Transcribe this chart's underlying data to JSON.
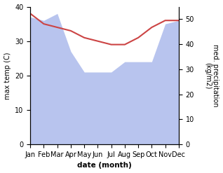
{
  "months": [
    "Jan",
    "Feb",
    "Mar",
    "Apr",
    "May",
    "Jun",
    "Jul",
    "Aug",
    "Sep",
    "Oct",
    "Nov",
    "Dec"
  ],
  "temperature": [
    38,
    35,
    34,
    33,
    31,
    30,
    29,
    29,
    31,
    34,
    36,
    36
  ],
  "precipitation": [
    37,
    36,
    38,
    27,
    21,
    21,
    21,
    24,
    24,
    24,
    35,
    36
  ],
  "temp_color": "#cc4444",
  "precip_color": "#b8c4ee",
  "ylabel_left": "max temp (C)",
  "ylabel_right": "med. precipitation\n(kg/m2)",
  "xlabel": "date (month)",
  "ylim_left": [
    0,
    40
  ],
  "ylim_right": [
    0,
    55
  ],
  "yticks_left": [
    0,
    10,
    20,
    30,
    40
  ],
  "yticks_right": [
    0,
    10,
    20,
    30,
    40,
    50
  ],
  "right_tick_labels": [
    "0",
    "10",
    "20",
    "30",
    "40",
    "50"
  ],
  "background_color": "#ffffff"
}
